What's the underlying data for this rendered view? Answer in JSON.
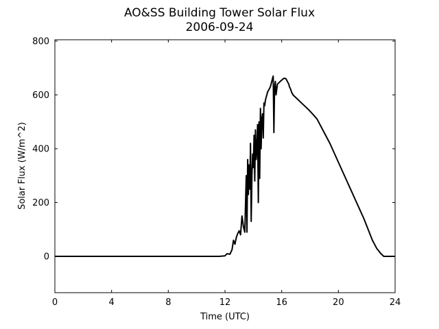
{
  "chart_data": {
    "type": "line",
    "title": "AO&SS Building Tower Solar Flux",
    "subtitle": "2006-09-24",
    "xlabel": "Time (UTC)",
    "ylabel": "Solar Flux (W/m^2)",
    "xlim": [
      0,
      24
    ],
    "ylim": [
      -135,
      805
    ],
    "xticks": [
      0,
      4,
      8,
      12,
      16,
      20,
      24
    ],
    "yticks": [
      0,
      200,
      400,
      600,
      800
    ],
    "grid": false,
    "legend": "none",
    "line_color": "#000000",
    "series": [
      {
        "x": [
          0,
          1.7,
          2.5,
          10.5,
          11.6,
          12.0,
          12.15,
          12.35,
          12.5,
          12.6,
          12.7,
          12.8,
          12.9,
          13.0,
          13.1,
          13.2,
          13.3,
          13.4,
          13.5,
          13.55,
          13.6,
          13.65,
          13.7,
          13.75,
          13.8,
          13.85,
          13.9,
          13.95,
          14.0,
          14.05,
          14.1,
          14.15,
          14.2,
          14.25,
          14.3,
          14.35,
          14.4,
          14.45,
          14.5,
          14.55,
          14.6,
          14.65,
          14.7,
          14.75,
          14.8,
          14.85,
          14.9,
          14.95,
          15.0,
          15.05,
          15.1,
          15.15,
          15.2,
          15.25,
          15.3,
          15.35,
          15.4,
          15.45,
          15.5,
          15.55,
          15.6,
          15.7,
          15.8,
          15.9,
          16.0,
          16.1,
          16.2,
          16.3,
          16.4,
          16.45,
          16.5,
          16.55,
          16.6,
          16.65,
          16.7,
          16.8,
          17.0,
          17.3,
          17.6,
          17.9,
          18.2,
          18.5,
          18.8,
          19.1,
          19.4,
          19.7,
          20.0,
          20.3,
          20.6,
          20.9,
          21.2,
          21.5,
          21.8,
          22.1,
          22.4,
          22.7,
          23.0,
          23.2,
          23.4,
          23.6,
          23.8,
          24.0
        ],
        "y": [
          0,
          0,
          0,
          0,
          0,
          2,
          10,
          8,
          25,
          60,
          45,
          70,
          85,
          95,
          80,
          150,
          110,
          90,
          300,
          90,
          360,
          230,
          340,
          250,
          420,
          130,
          300,
          380,
          330,
          450,
          280,
          470,
          360,
          400,
          490,
          200,
          500,
          290,
          550,
          400,
          510,
          530,
          440,
          570,
          560,
          580,
          590,
          600,
          610,
          615,
          620,
          625,
          630,
          640,
          650,
          660,
          670,
          460,
          630,
          650,
          600,
          640,
          645,
          650,
          655,
          660,
          662,
          660,
          650,
          645,
          640,
          630,
          625,
          618,
          610,
          600,
          590,
          575,
          560,
          545,
          528,
          510,
          480,
          450,
          420,
          385,
          350,
          315,
          280,
          245,
          210,
          175,
          140,
          100,
          60,
          30,
          10,
          0,
          0,
          0,
          0,
          0
        ]
      }
    ]
  }
}
